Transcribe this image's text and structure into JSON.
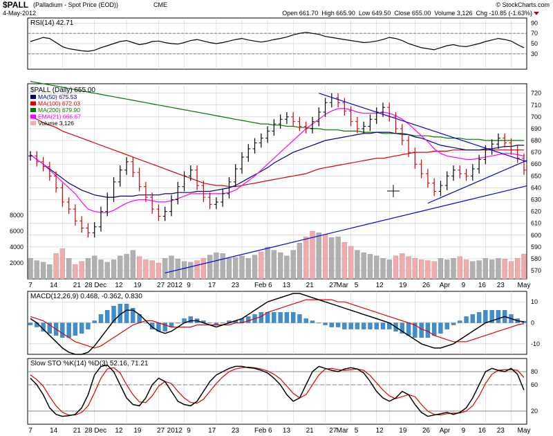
{
  "header": {
    "symbol": "$PALL",
    "description": "(Palladium - Spot Price (EOD))",
    "exchange": "CME",
    "date": "4-May-2012",
    "watermark": "© StockCharts.com",
    "quote": "Open 661.70  High 665.90  Low 649.50  Close 655.00  Volume 3,126  Chg -10.85 (-1.63%)"
  },
  "colors": {
    "price_up": "#000000",
    "price_down": "#cc0000",
    "ma50": "#000080",
    "ma100": "#dd0000",
    "ma200": "#007700",
    "ema21": "#ff00ff",
    "volume_up": "#b0b0b0",
    "volume_down": "#f2aaaa",
    "trendline": "#0000dd",
    "macd": "#000000",
    "signal": "#dd0000",
    "histogram": "#3d8fd0",
    "stoch_k": "#000000",
    "stoch_d": "#dd0000"
  },
  "chart_data": [
    {
      "type": "line",
      "panel": "rsi",
      "title": "RSI(14) 42.71",
      "ylim": [
        0,
        100
      ],
      "yticks": [
        30,
        50,
        70,
        90
      ],
      "reference_lines": [
        30,
        70
      ],
      "values": [
        54,
        58,
        62,
        60,
        52,
        44,
        40,
        38,
        36,
        35,
        37,
        42,
        46,
        50,
        54,
        56,
        52,
        48,
        50,
        54,
        55,
        52,
        50,
        49,
        52,
        56,
        58,
        55,
        52,
        50,
        52,
        55,
        58,
        60,
        57,
        55,
        53,
        55,
        58,
        60,
        63,
        67,
        70,
        72,
        70,
        68,
        64,
        62,
        60,
        58,
        56,
        54,
        52,
        53,
        55,
        58,
        62,
        60,
        56,
        50,
        46,
        42,
        40,
        38,
        42,
        46,
        48,
        45,
        44,
        47,
        50,
        54,
        57,
        60,
        58,
        55,
        48,
        42
      ]
    },
    {
      "type": "line",
      "panel": "price",
      "title": "$PALL (Daily) 655.00",
      "ylim": [
        563,
        728
      ],
      "yticks": [
        570,
        580,
        590,
        600,
        610,
        620,
        630,
        640,
        650,
        660,
        670,
        680,
        690,
        700,
        710,
        720
      ],
      "xtick_labels": [
        "7",
        "14",
        "21",
        "28 Dec",
        "12",
        "19",
        "27",
        "2012",
        "9",
        "17",
        "23",
        "Feb 6",
        "13",
        "21",
        "27",
        "Mar",
        "5",
        "12",
        "19",
        "26",
        "Apr",
        "9",
        "16",
        "23",
        "May"
      ],
      "legend": [
        {
          "name": "MA(50) 675.53"
        },
        {
          "name": "MA(100) 672.03"
        },
        {
          "name": "MA(200) 679.90"
        },
        {
          "name": "EMA(21) 666.67"
        },
        {
          "name": "Volume 3,126"
        }
      ],
      "close": [
        667,
        662,
        658,
        650,
        640,
        628,
        622,
        612,
        606,
        602,
        607,
        620,
        632,
        645,
        655,
        662,
        653,
        641,
        632,
        622,
        616,
        620,
        630,
        641,
        650,
        655,
        642,
        632,
        626,
        628,
        635,
        645,
        656,
        666,
        673,
        678,
        682,
        688,
        694,
        698,
        700,
        696,
        692,
        690,
        696,
        704,
        712,
        716,
        712,
        705,
        696,
        690,
        692,
        698,
        704,
        708,
        700,
        690,
        680,
        670,
        660,
        652,
        644,
        637,
        642,
        650,
        655,
        652,
        650,
        656,
        664,
        672,
        677,
        682,
        678,
        672,
        665,
        655
      ],
      "ma50": [
        668,
        664,
        660,
        656,
        652,
        648,
        644,
        641,
        638,
        636,
        634,
        633,
        632,
        632,
        633,
        633,
        633,
        634,
        634,
        634,
        634,
        635,
        635,
        636,
        636,
        636,
        637,
        637,
        637,
        638,
        639,
        640,
        642,
        645,
        648,
        651,
        654,
        657,
        661,
        664,
        667,
        670,
        672,
        674,
        676,
        678,
        680,
        681,
        682,
        683,
        684,
        685,
        686,
        686,
        687,
        687,
        687,
        686,
        686,
        685,
        683,
        682,
        680,
        678,
        676,
        675,
        674,
        673,
        672,
        672,
        672,
        673,
        673,
        674,
        675,
        675,
        676,
        676
      ],
      "ma100": [
        700,
        698,
        695,
        693,
        691,
        688,
        686,
        684,
        682,
        680,
        678,
        676,
        674,
        672,
        670,
        668,
        666,
        664,
        662,
        660,
        658,
        656,
        654,
        652,
        650,
        648,
        646,
        644,
        643,
        642,
        642,
        641,
        641,
        642,
        643,
        644,
        645,
        646,
        647,
        648,
        649,
        650,
        651,
        652,
        654,
        656,
        657,
        658,
        659,
        660,
        661,
        662,
        663,
        664,
        665,
        665,
        666,
        667,
        668,
        669,
        670,
        670,
        670,
        671,
        671,
        671,
        672,
        672,
        672,
        672,
        672,
        672,
        672,
        672,
        672,
        672,
        672,
        672
      ],
      "ma200": [
        730,
        729,
        728,
        727,
        726,
        725,
        724,
        723,
        722,
        721,
        720,
        719,
        718,
        717,
        716,
        715,
        714,
        713,
        712,
        711,
        710,
        709,
        708,
        707,
        706,
        705,
        704,
        703,
        702,
        701,
        700,
        699,
        698,
        697,
        696,
        695,
        694,
        694,
        693,
        693,
        692,
        692,
        691,
        691,
        690,
        690,
        689,
        689,
        689,
        688,
        688,
        688,
        687,
        687,
        687,
        686,
        686,
        686,
        685,
        685,
        684,
        684,
        684,
        683,
        683,
        682,
        682,
        682,
        681,
        681,
        681,
        680,
        680,
        680,
        680,
        680,
        680,
        680
      ],
      "ema21": [
        668,
        664,
        660,
        655,
        650,
        645,
        640,
        635,
        628,
        622,
        620,
        619,
        619,
        621,
        624,
        627,
        629,
        630,
        630,
        629,
        628,
        628,
        629,
        631,
        633,
        635,
        635,
        635,
        635,
        635,
        635,
        636,
        638,
        642,
        646,
        650,
        655,
        660,
        665,
        670,
        675,
        680,
        685,
        690,
        694,
        698,
        702,
        705,
        707,
        707,
        706,
        704,
        703,
        703,
        703,
        704,
        703,
        701,
        698,
        694,
        689,
        684,
        679,
        673,
        669,
        667,
        666,
        665,
        664,
        664,
        665,
        666,
        667,
        668,
        669,
        669,
        668,
        667
      ]
    },
    {
      "type": "bar",
      "panel": "volume",
      "ylim": [
        0,
        10000
      ],
      "yticks": [
        2000,
        4000,
        6000,
        8000
      ],
      "values": [
        2600,
        2300,
        2100,
        1800,
        3200,
        3800,
        2600,
        1800,
        2200,
        2600,
        2900,
        2400,
        2100,
        2400,
        2900,
        3100,
        3600,
        2800,
        2400,
        2300,
        2000,
        2600,
        2900,
        2500,
        2200,
        2100,
        2300,
        2600,
        3000,
        3300,
        3200,
        2600,
        2700,
        2900,
        2600,
        3000,
        3400,
        4000,
        3600,
        3300,
        2900,
        3600,
        4500,
        5300,
        6000,
        5800,
        5600,
        5200,
        5300,
        4600,
        4100,
        3600,
        3300,
        3100,
        2900,
        2600,
        2400,
        2900,
        3200,
        2800,
        2600,
        2400,
        2300,
        2200,
        2600,
        2400,
        2600,
        2800,
        2400,
        2200,
        2300,
        2600,
        2400,
        2600,
        2500,
        2200,
        2600,
        3126
      ],
      "down_days": [
        4,
        5,
        7,
        8,
        17,
        18,
        19,
        20,
        26,
        27,
        36,
        43,
        44,
        46,
        49,
        50,
        57,
        58,
        59,
        60,
        61,
        62,
        63,
        67,
        68,
        74,
        75,
        76,
        77
      ]
    },
    {
      "type": "line",
      "panel": "macd",
      "title": "MACD(12,26,9) 0.468, -0.362, 0.830",
      "ylim": [
        -15,
        15
      ],
      "yticks": [
        -10,
        0,
        10
      ],
      "series": [
        {
          "name": "MACD",
          "values": [
            2,
            0,
            -3,
            -6,
            -9,
            -12,
            -14,
            -15,
            -15,
            -14,
            -11,
            -7,
            -3,
            1,
            4,
            6,
            6,
            4,
            1,
            -2,
            -4,
            -5,
            -4,
            -2,
            0,
            1,
            1,
            0,
            -1,
            -2,
            -1,
            0,
            1,
            2,
            4,
            6,
            8,
            10,
            11,
            12,
            13,
            14,
            14,
            13,
            12,
            11,
            10,
            9,
            8,
            7,
            6,
            5,
            4,
            3,
            2,
            1,
            0,
            -2,
            -4,
            -6,
            -8,
            -10,
            -11,
            -12,
            -12,
            -11,
            -10,
            -8,
            -6,
            -4,
            -2,
            0,
            1,
            2,
            3,
            2,
            1,
            0.468
          ]
        },
        {
          "name": "Signal",
          "values": [
            3,
            2,
            1,
            -1,
            -3,
            -5,
            -7,
            -9,
            -10,
            -11,
            -12,
            -11,
            -9,
            -7,
            -5,
            -3,
            -1,
            0,
            1,
            1,
            0,
            -1,
            -2,
            -2,
            -2,
            -2,
            -1,
            -1,
            -1,
            -1,
            -1,
            -1,
            0,
            0,
            1,
            2,
            3,
            5,
            6,
            7,
            8,
            9,
            10,
            11,
            11,
            11,
            11,
            11,
            10,
            10,
            9,
            8,
            7,
            6,
            5,
            4,
            3,
            2,
            1,
            0,
            -1,
            -3,
            -4,
            -6,
            -7,
            -8,
            -9,
            -9,
            -9,
            -8,
            -7,
            -6,
            -5,
            -4,
            -3,
            -2,
            -1,
            -0.362
          ]
        },
        {
          "name": "Histogram",
          "values": [
            -1,
            -2,
            -4,
            -5,
            -6,
            -7,
            -7,
            -6,
            -5,
            -3,
            1,
            4,
            6,
            8,
            9,
            9,
            7,
            4,
            0,
            -3,
            -4,
            -4,
            -2,
            0,
            2,
            3,
            2,
            1,
            0,
            -1,
            0,
            1,
            1,
            2,
            3,
            4,
            5,
            5,
            5,
            5,
            5,
            5,
            4,
            2,
            1,
            0,
            -1,
            -2,
            -2,
            -3,
            -3,
            -3,
            -3,
            -3,
            -3,
            -3,
            -3,
            -4,
            -5,
            -6,
            -7,
            -7,
            -7,
            -6,
            -5,
            -3,
            -1,
            1,
            3,
            4,
            5,
            6,
            6,
            6,
            6,
            4,
            2,
            0.83
          ]
        }
      ]
    },
    {
      "type": "line",
      "panel": "stochastic",
      "title": "Slow STO %K(14) %D(3) 52.16, 71.21",
      "ylim": [
        0,
        100
      ],
      "yticks": [
        20,
        60,
        80
      ],
      "reference_lines": [
        20,
        80
      ],
      "series": [
        {
          "name": "%K",
          "values": [
            70,
            60,
            45,
            25,
            15,
            12,
            13,
            15,
            25,
            45,
            75,
            88,
            90,
            80,
            60,
            40,
            30,
            28,
            40,
            60,
            70,
            65,
            50,
            35,
            30,
            28,
            35,
            50,
            65,
            75,
            80,
            85,
            88,
            88,
            86,
            85,
            82,
            78,
            70,
            60,
            45,
            35,
            40,
            60,
            80,
            88,
            85,
            82,
            80,
            84,
            86,
            84,
            78,
            65,
            50,
            40,
            35,
            40,
            50,
            45,
            30,
            18,
            12,
            14,
            16,
            18,
            15,
            18,
            25,
            40,
            60,
            80,
            85,
            82,
            80,
            85,
            76,
            52
          ]
        },
        {
          "name": "%D",
          "values": [
            75,
            68,
            58,
            42,
            28,
            18,
            14,
            14,
            18,
            28,
            48,
            70,
            84,
            86,
            78,
            60,
            45,
            34,
            33,
            43,
            58,
            65,
            62,
            50,
            40,
            33,
            32,
            38,
            50,
            62,
            72,
            80,
            84,
            86,
            87,
            86,
            84,
            81,
            76,
            69,
            58,
            47,
            40,
            45,
            60,
            75,
            84,
            85,
            83,
            82,
            83,
            84,
            82,
            74,
            63,
            52,
            43,
            39,
            42,
            45,
            42,
            30,
            20,
            15,
            14,
            16,
            17,
            17,
            20,
            28,
            43,
            62,
            76,
            82,
            83,
            83,
            82,
            71
          ]
        }
      ]
    }
  ]
}
